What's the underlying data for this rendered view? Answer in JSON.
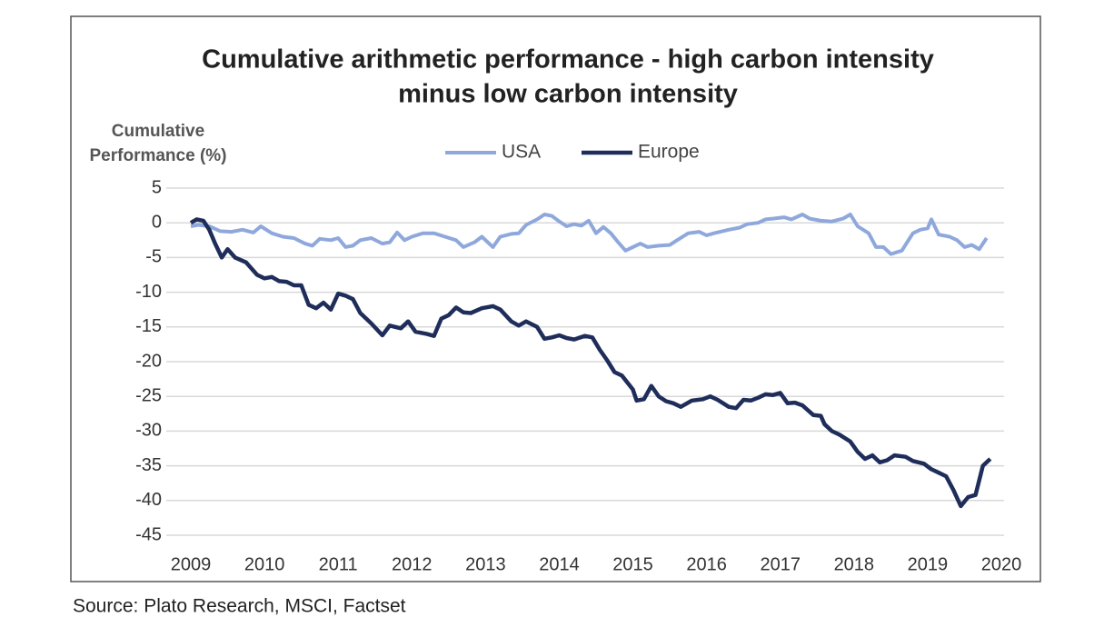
{
  "chart_data": {
    "type": "line",
    "title": [
      "Cumulative arithmetic performance - high carbon intensity",
      "minus low carbon intensity"
    ],
    "y_label": [
      "Cumulative",
      "Performance (%)"
    ],
    "source": "Source: Plato Research, MSCI, Factset",
    "xlim": [
      2009,
      2020
    ],
    "xticks": [
      2009,
      2010,
      2011,
      2012,
      2013,
      2014,
      2015,
      2016,
      2017,
      2018,
      2019,
      2020
    ],
    "ylim": [
      -45,
      5
    ],
    "yticks": [
      5,
      0,
      -5,
      -10,
      -15,
      -20,
      -25,
      -30,
      -35,
      -40,
      -45
    ],
    "grid": true,
    "legend": "top",
    "series": [
      {
        "name": "USA",
        "color": "#8fa8dc",
        "x": [
          2009.0,
          2009.1,
          2009.25,
          2009.4,
          2009.55,
          2009.7,
          2009.85,
          2009.95,
          2010.1,
          2010.25,
          2010.4,
          2010.55,
          2010.65,
          2010.75,
          2010.9,
          2011.0,
          2011.1,
          2011.2,
          2011.3,
          2011.45,
          2011.6,
          2011.7,
          2011.8,
          2011.9,
          2012.0,
          2012.15,
          2012.3,
          2012.45,
          2012.6,
          2012.7,
          2012.85,
          2012.95,
          2013.1,
          2013.2,
          2013.35,
          2013.45,
          2013.55,
          2013.7,
          2013.8,
          2013.9,
          2014.0,
          2014.1,
          2014.2,
          2014.3,
          2014.4,
          2014.5,
          2014.6,
          2014.7,
          2014.8,
          2014.9,
          2015.0,
          2015.1,
          2015.2,
          2015.35,
          2015.5,
          2015.6,
          2015.75,
          2015.9,
          2016.0,
          2016.1,
          2016.3,
          2016.45,
          2016.55,
          2016.7,
          2016.8,
          2016.9,
          2017.05,
          2017.15,
          2017.3,
          2017.4,
          2017.55,
          2017.7,
          2017.85,
          2017.95,
          2018.05,
          2018.2,
          2018.3,
          2018.4,
          2018.5,
          2018.65,
          2018.8,
          2018.9,
          2019.0,
          2019.05,
          2019.15,
          2019.3,
          2019.4,
          2019.5,
          2019.6,
          2019.7,
          2019.8
        ],
        "values": [
          -0.5,
          -0.3,
          -0.5,
          -1.2,
          -1.3,
          -1.0,
          -1.4,
          -0.5,
          -1.5,
          -2.0,
          -2.2,
          -3.0,
          -3.3,
          -2.3,
          -2.5,
          -2.2,
          -3.5,
          -3.3,
          -2.5,
          -2.2,
          -3.0,
          -2.8,
          -1.4,
          -2.5,
          -2.0,
          -1.5,
          -1.5,
          -2.0,
          -2.5,
          -3.5,
          -2.8,
          -2.0,
          -3.5,
          -2.0,
          -1.6,
          -1.5,
          -0.3,
          0.5,
          1.2,
          1.0,
          0.2,
          -0.5,
          -0.2,
          -0.4,
          0.3,
          -1.5,
          -0.6,
          -1.5,
          -2.8,
          -4.0,
          -3.5,
          -3.0,
          -3.5,
          -3.3,
          -3.2,
          -2.5,
          -1.5,
          -1.3,
          -1.8,
          -1.5,
          -1.0,
          -0.7,
          -0.2,
          0.0,
          0.5,
          0.6,
          0.8,
          0.5,
          1.2,
          0.6,
          0.3,
          0.2,
          0.6,
          1.2,
          -0.5,
          -1.5,
          -3.5,
          -3.5,
          -4.5,
          -4.0,
          -1.5,
          -1.0,
          -0.8,
          0.5,
          -1.7,
          -2.0,
          -2.5,
          -3.5,
          -3.2,
          -3.8,
          -2.2
        ]
      },
      {
        "name": "Europe",
        "color": "#1f2d5a",
        "x": [
          2009.0,
          2009.08,
          2009.17,
          2009.25,
          2009.33,
          2009.42,
          2009.5,
          2009.6,
          2009.75,
          2009.9,
          2010.0,
          2010.1,
          2010.2,
          2010.3,
          2010.4,
          2010.5,
          2010.6,
          2010.7,
          2010.8,
          2010.9,
          2011.0,
          2011.1,
          2011.2,
          2011.3,
          2011.45,
          2011.6,
          2011.7,
          2011.85,
          2011.95,
          2012.05,
          2012.2,
          2012.3,
          2012.4,
          2012.5,
          2012.6,
          2012.7,
          2012.8,
          2012.95,
          2013.1,
          2013.2,
          2013.35,
          2013.45,
          2013.55,
          2013.7,
          2013.8,
          2013.9,
          2014.0,
          2014.1,
          2014.2,
          2014.35,
          2014.45,
          2014.55,
          2014.65,
          2014.75,
          2014.85,
          2015.0,
          2015.05,
          2015.15,
          2015.25,
          2015.35,
          2015.45,
          2015.55,
          2015.65,
          2015.8,
          2015.95,
          2016.05,
          2016.15,
          2016.3,
          2016.4,
          2016.5,
          2016.6,
          2016.7,
          2016.8,
          2016.9,
          2017.0,
          2017.1,
          2017.2,
          2017.3,
          2017.45,
          2017.55,
          2017.6,
          2017.7,
          2017.8,
          2017.95,
          2018.05,
          2018.15,
          2018.25,
          2018.35,
          2018.45,
          2018.55,
          2018.7,
          2018.8,
          2018.95,
          2019.05,
          2019.15,
          2019.25,
          2019.35,
          2019.45,
          2019.55,
          2019.65,
          2019.75,
          2019.85
        ],
        "values": [
          0,
          0.5,
          0.3,
          -1,
          -3,
          -5,
          -3.8,
          -5,
          -5.7,
          -7.5,
          -8,
          -7.8,
          -8.4,
          -8.5,
          -9,
          -9,
          -11.8,
          -12.3,
          -11.5,
          -12.5,
          -10.2,
          -10.5,
          -11,
          -13,
          -14.5,
          -16.2,
          -14.8,
          -15.2,
          -14.2,
          -15.7,
          -16,
          -16.3,
          -13.8,
          -13.3,
          -12.2,
          -12.9,
          -13,
          -12.3,
          -12,
          -12.5,
          -14.2,
          -14.8,
          -14.2,
          -15,
          -16.7,
          -16.5,
          -16.2,
          -16.6,
          -16.8,
          -16.3,
          -16.5,
          -18.3,
          -19.8,
          -21.5,
          -22,
          -24,
          -25.6,
          -25.4,
          -23.5,
          -25,
          -25.7,
          -26,
          -26.5,
          -25.6,
          -25.4,
          -25,
          -25.5,
          -26.5,
          -26.7,
          -25.5,
          -25.6,
          -25.2,
          -24.7,
          -24.8,
          -24.5,
          -26,
          -25.9,
          -26.3,
          -27.7,
          -27.8,
          -29,
          -30,
          -30.5,
          -31.5,
          -33,
          -34,
          -33.5,
          -34.5,
          -34.2,
          -33.5,
          -33.7,
          -34.3,
          -34.7,
          -35.5,
          -36,
          -36.5,
          -38.5,
          -40.8,
          -39.5,
          -39.2,
          -35,
          -34
        ]
      }
    ]
  }
}
